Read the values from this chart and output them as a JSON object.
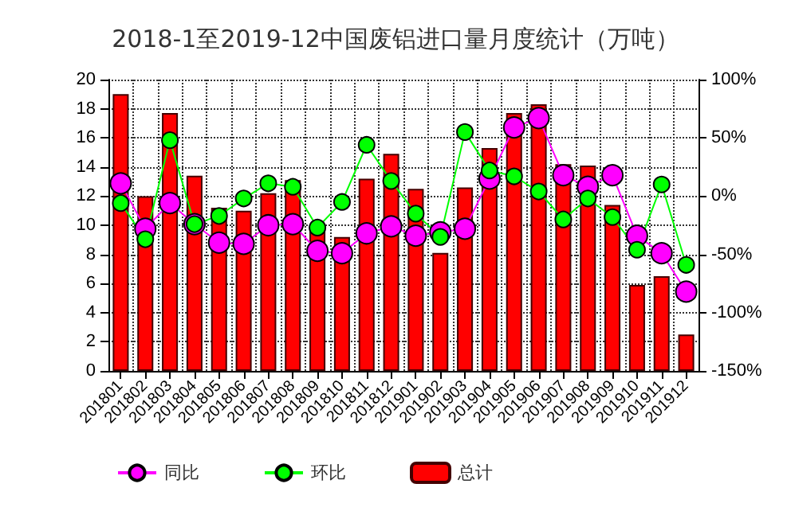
{
  "chart_data": {
    "type": "bar",
    "title": "2018-1至2019-12中国废铝进口量月度统计（万吨）",
    "categories": [
      "201801",
      "201802",
      "201803",
      "201804",
      "201805",
      "201806",
      "201807",
      "201808",
      "201809",
      "201810",
      "201811",
      "201812",
      "201901",
      "201902",
      "201903",
      "201904",
      "201905",
      "201906",
      "201907",
      "201908",
      "201909",
      "201910",
      "201911",
      "201912"
    ],
    "series": [
      {
        "name": "同比",
        "type": "line",
        "axis": "y2",
        "color": "#ff00ff",
        "values": [
          11,
          -28,
          -6,
          -24,
          -40,
          -41,
          -25,
          -24,
          -47,
          -49,
          -32,
          -26,
          -34,
          -31,
          -28,
          15,
          59,
          67,
          18,
          8,
          18,
          -34,
          -49,
          -82
        ]
      },
      {
        "name": "环比",
        "type": "line",
        "axis": "y2",
        "color": "#00ff00",
        "values": [
          -6,
          -37,
          48,
          -24,
          -17,
          -2,
          11,
          8,
          -27,
          -5,
          44,
          13,
          -15,
          -35,
          55,
          22,
          17,
          4,
          -20,
          -2,
          -18,
          -46,
          10,
          -59
        ]
      },
      {
        "name": "总计",
        "color": "#ff0000",
        "values": [
          19,
          12,
          17.7,
          13.4,
          11.2,
          11,
          12.2,
          13.1,
          9.7,
          9.2,
          13.2,
          14.9,
          12.5,
          8.1,
          12.6,
          15.3,
          17.7,
          18.3,
          14.2,
          14.1,
          11.4,
          5.9,
          6.5,
          2.5
        ]
      }
    ],
    "ylim": [
      0,
      20
    ],
    "yticks": [
      0,
      2,
      4,
      6,
      8,
      10,
      12,
      14,
      16,
      18,
      20
    ],
    "y2lim": [
      -150,
      100
    ],
    "y2ticks": [
      {
        "value": -150,
        "label": "-150%"
      },
      {
        "value": -100,
        "label": "-100%"
      },
      {
        "value": -50,
        "label": "-50%"
      },
      {
        "value": 0,
        "label": "0%"
      },
      {
        "value": 50,
        "label": "50%"
      },
      {
        "value": 100,
        "label": "100%"
      }
    ],
    "grid": true,
    "legend": "bottom",
    "marker": "circle"
  }
}
